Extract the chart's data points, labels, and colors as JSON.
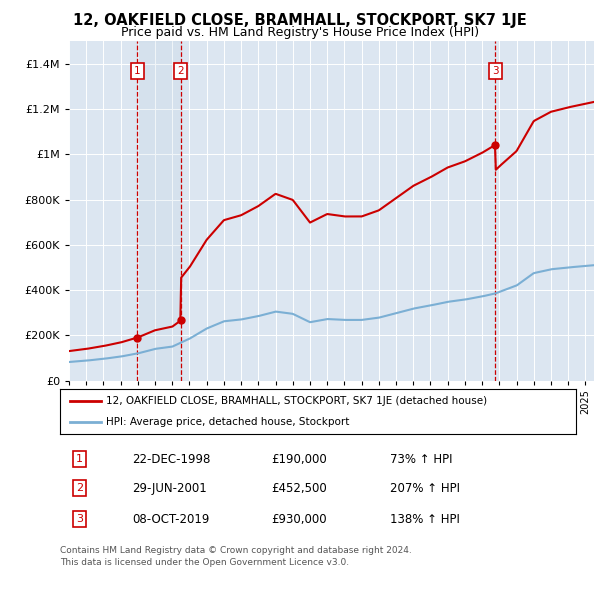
{
  "title_line1": "12, OAKFIELD CLOSE, BRAMHALL, STOCKPORT, SK7 1JE",
  "title_line2": "Price paid vs. HM Land Registry's House Price Index (HPI)",
  "background_color": "#ffffff",
  "plot_bg_color": "#dce6f1",
  "grid_color": "#ffffff",
  "red_line_color": "#cc0000",
  "blue_line_color": "#7bafd4",
  "sale_marker_color": "#cc0000",
  "transactions": [
    {
      "label": "1",
      "date_str": "22-DEC-1998",
      "date_x": 1998.97,
      "price": 190000,
      "pct": "73%",
      "dir": "↑"
    },
    {
      "label": "2",
      "date_str": "29-JUN-2001",
      "date_x": 2001.49,
      "price": 452500,
      "pct": "207%",
      "dir": "↑"
    },
    {
      "label": "3",
      "date_str": "08-OCT-2019",
      "date_x": 2019.77,
      "price": 930000,
      "pct": "138%",
      "dir": "↑"
    }
  ],
  "legend_line1": "12, OAKFIELD CLOSE, BRAMHALL, STOCKPORT, SK7 1JE (detached house)",
  "legend_line2": "HPI: Average price, detached house, Stockport",
  "footnote_line1": "Contains HM Land Registry data © Crown copyright and database right 2024.",
  "footnote_line2": "This data is licensed under the Open Government Licence v3.0.",
  "ylim": [
    0,
    1500000
  ],
  "xlim_start": 1995.0,
  "xlim_end": 2025.5,
  "yticks": [
    0,
    200000,
    400000,
    600000,
    800000,
    1000000,
    1200000,
    1400000
  ],
  "xtick_start": 1995,
  "xtick_end": 2025
}
